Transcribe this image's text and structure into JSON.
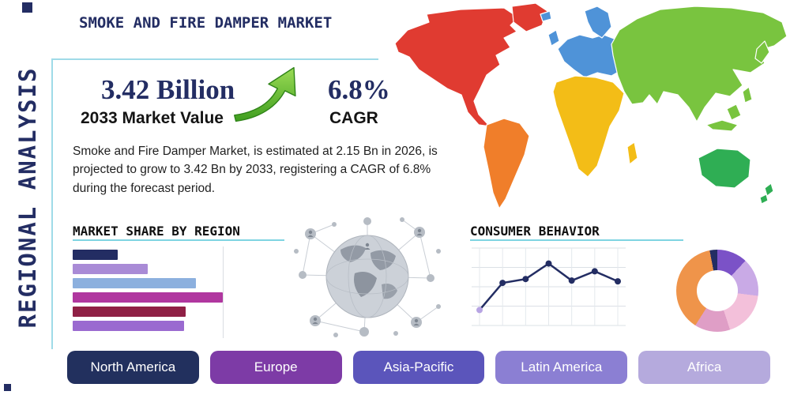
{
  "page": {
    "title": "SMOKE AND FIRE DAMPER MARKET",
    "side_label": "REGIONAL ANALYSIS"
  },
  "stats": {
    "market_value": "3.42 Billion",
    "market_value_caption": "2033 Market Value",
    "cagr_value": "6.8%",
    "cagr_caption": "CAGR"
  },
  "description": "Smoke and Fire Damper Market, is estimated at 2.15 Bn in 2026, is projected to grow to 3.42 Bn by 2033, registering a CAGR of 6.8% during the forecast period.",
  "sections": {
    "market_share_title": "MARKET SHARE BY REGION",
    "consumer_behavior_title": "CONSUMER BEHAVIOR"
  },
  "colors": {
    "navy": "#232d63",
    "accent_line": "#7fd4e2",
    "arrow_green": "#4aa421"
  },
  "map_colors": {
    "north_america": "#e03b31",
    "greenland": "#e03b31",
    "south_america": "#f07e2a",
    "europe": "#4f93d8",
    "africa": "#f3bd17",
    "asia": "#79c43f",
    "australia": "#2fae54"
  },
  "regions": [
    {
      "label": "North America",
      "color": "#22305e"
    },
    {
      "label": "Europe",
      "color": "#7d3ba6"
    },
    {
      "label": "Asia-Pacific",
      "color": "#5b55bb"
    },
    {
      "label": "Latin America",
      "color": "#8b7fd3"
    },
    {
      "label": "Africa",
      "color": "#b5aadd"
    }
  ],
  "chart_data": [
    {
      "type": "bar",
      "title": "MARKET SHARE BY REGION",
      "orientation": "horizontal",
      "values": [
        30,
        50,
        82,
        100,
        75,
        74
      ],
      "colors": [
        "#232d63",
        "#a98bd6",
        "#8cb0de",
        "#b0379f",
        "#8f2045",
        "#9a6ad0"
      ],
      "xlim": [
        0,
        100
      ],
      "grid": true
    },
    {
      "type": "line",
      "title": "CONSUMER BEHAVIOR",
      "x": [
        1,
        2,
        3,
        4,
        5,
        6,
        7
      ],
      "values": [
        2,
        5.5,
        6,
        8,
        5.8,
        7,
        5.7
      ],
      "ylim": [
        0,
        10
      ],
      "line_color": "#232d63",
      "marker_color": "#232d63",
      "first_marker_color": "#b7a4e3",
      "grid": true
    },
    {
      "type": "pie",
      "donut": true,
      "values": [
        12,
        15,
        18,
        14,
        38,
        3
      ],
      "colors": [
        "#7b52c7",
        "#c9aae6",
        "#f3c0da",
        "#df9ec6",
        "#ef944a",
        "#232d63"
      ]
    }
  ]
}
